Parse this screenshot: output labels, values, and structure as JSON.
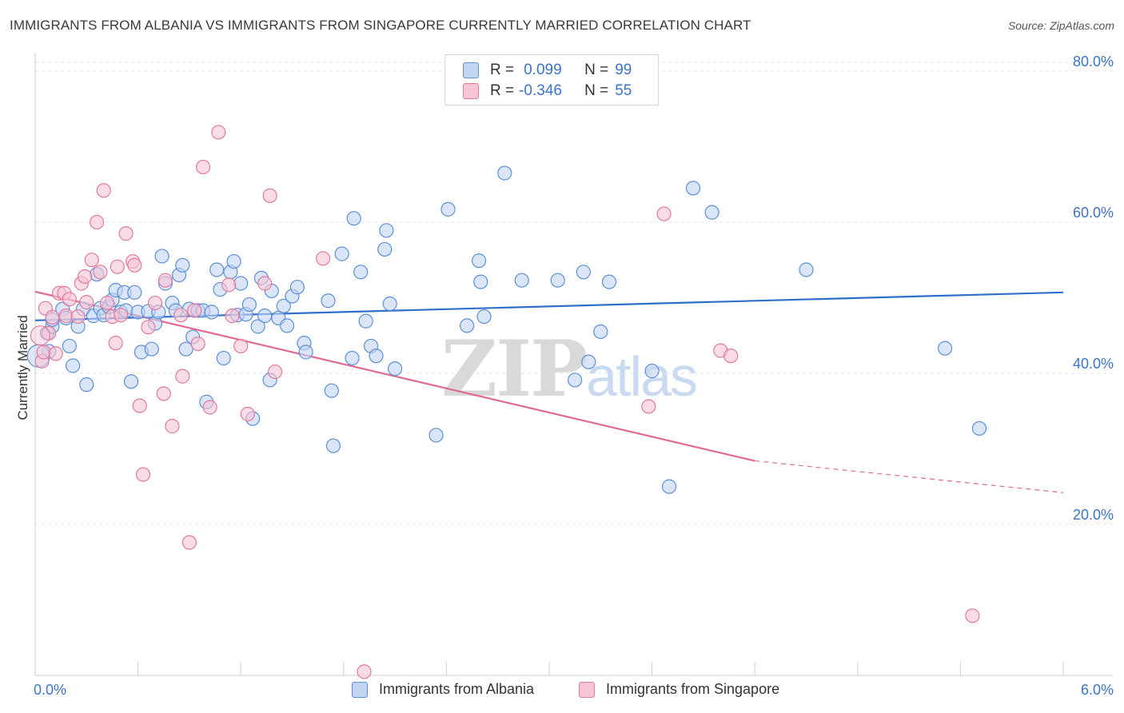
{
  "title": "IMMIGRANTS FROM ALBANIA VS IMMIGRANTS FROM SINGAPORE CURRENTLY MARRIED CORRELATION CHART",
  "source": "Source: ZipAtlas.com",
  "watermark": {
    "zip": "ZIP",
    "atlas": "atlas"
  },
  "legend": {
    "r_label": "R =",
    "n_label": "N =",
    "rows": [
      {
        "r": "0.099",
        "n": "99"
      },
      {
        "r": "-0.346",
        "n": "55"
      }
    ]
  },
  "chart_data": {
    "type": "scatter",
    "title": "IMMIGRANTS FROM ALBANIA VS IMMIGRANTS FROM SINGAPORE CURRENTLY MARRIED CORRELATION CHART",
    "xlabel": "",
    "ylabel": "Currently Married",
    "xlim": [
      0,
      6
    ],
    "ylim": [
      0,
      82
    ],
    "x_tick_labels": [
      "0.0%",
      "6.0%"
    ],
    "y_ticks": [
      20,
      40,
      60,
      80
    ],
    "y_tick_labels": [
      "20.0%",
      "40.0%",
      "60.0%",
      "80.0%"
    ],
    "grid": true,
    "colors": {
      "albania_fill": "#c2d6f2",
      "albania_stroke": "#5b8fd6",
      "albania_line": "#2f6fcc",
      "singapore_fill": "#f7c5d6",
      "singapore_stroke": "#e07a9e",
      "singapore_line": "#e06a96"
    },
    "series": [
      {
        "name": "Immigrants from Albania",
        "r": 0.099,
        "n": 99,
        "trend": {
          "x": [
            0,
            6
          ],
          "y": [
            47,
            50.7
          ]
        },
        "points": [
          [
            0.07,
            45.3
          ],
          [
            0.08,
            42.9
          ],
          [
            0.1,
            46.2
          ],
          [
            0.1,
            47.1
          ],
          [
            0.16,
            48.5
          ],
          [
            0.18,
            47.3
          ],
          [
            0.2,
            43.6
          ],
          [
            0.22,
            41
          ],
          [
            0.25,
            46.2
          ],
          [
            0.28,
            48.5
          ],
          [
            0.3,
            38.5
          ],
          [
            0.34,
            47.6
          ],
          [
            0.36,
            53.1
          ],
          [
            0.38,
            48.6
          ],
          [
            0.4,
            47.7
          ],
          [
            0.43,
            48.8
          ],
          [
            0.45,
            49.7
          ],
          [
            0.47,
            51
          ],
          [
            0.5,
            48.1
          ],
          [
            0.52,
            50.7
          ],
          [
            0.53,
            48.3
          ],
          [
            0.56,
            38.9
          ],
          [
            0.58,
            50.7
          ],
          [
            0.6,
            48.1
          ],
          [
            0.62,
            42.8
          ],
          [
            0.66,
            48.2
          ],
          [
            0.68,
            43.2
          ],
          [
            0.7,
            46.6
          ],
          [
            0.72,
            48.1
          ],
          [
            0.74,
            55.5
          ],
          [
            0.76,
            51.9
          ],
          [
            0.8,
            49.3
          ],
          [
            0.82,
            48.3
          ],
          [
            0.84,
            53
          ],
          [
            0.86,
            54.3
          ],
          [
            0.88,
            43.2
          ],
          [
            0.9,
            48.5
          ],
          [
            0.92,
            44.8
          ],
          [
            0.95,
            48.3
          ],
          [
            0.98,
            48.3
          ],
          [
            1.0,
            36.2
          ],
          [
            1.03,
            48.1
          ],
          [
            1.06,
            53.7
          ],
          [
            1.08,
            51.1
          ],
          [
            1.1,
            42
          ],
          [
            1.14,
            53.4
          ],
          [
            1.16,
            54.8
          ],
          [
            1.18,
            47.7
          ],
          [
            1.2,
            51.9
          ],
          [
            1.23,
            47.8
          ],
          [
            1.25,
            49.1
          ],
          [
            1.27,
            34
          ],
          [
            1.3,
            46.2
          ],
          [
            1.32,
            52.6
          ],
          [
            1.34,
            47.6
          ],
          [
            1.37,
            39.1
          ],
          [
            1.38,
            50.9
          ],
          [
            1.42,
            47.3
          ],
          [
            1.45,
            48.9
          ],
          [
            1.47,
            46.3
          ],
          [
            1.5,
            50.2
          ],
          [
            1.53,
            51.4
          ],
          [
            1.57,
            44
          ],
          [
            1.58,
            42.8
          ],
          [
            1.71,
            49.6
          ],
          [
            1.73,
            37.7
          ],
          [
            1.74,
            30.4
          ],
          [
            1.79,
            55.8
          ],
          [
            1.85,
            42
          ],
          [
            1.86,
            60.5
          ],
          [
            1.9,
            53.4
          ],
          [
            1.93,
            46.9
          ],
          [
            1.96,
            43.6
          ],
          [
            1.99,
            42.3
          ],
          [
            2.04,
            56.4
          ],
          [
            2.05,
            58.9
          ],
          [
            2.07,
            49.2
          ],
          [
            2.34,
            31.8
          ],
          [
            2.41,
            61.7
          ],
          [
            2.52,
            46.3
          ],
          [
            2.59,
            54.9
          ],
          [
            2.6,
            52.1
          ],
          [
            2.74,
            66.5
          ],
          [
            2.84,
            52.3
          ],
          [
            3.05,
            52.3
          ],
          [
            3.15,
            39.1
          ],
          [
            3.2,
            53.4
          ],
          [
            3.23,
            41.5
          ],
          [
            3.3,
            45.5
          ],
          [
            3.35,
            52.1
          ],
          [
            3.6,
            40.3
          ],
          [
            3.7,
            25
          ],
          [
            3.84,
            64.5
          ],
          [
            3.95,
            61.3
          ],
          [
            4.5,
            53.7
          ],
          [
            5.31,
            43.3
          ],
          [
            5.51,
            32.7
          ],
          [
            2.1,
            40.6
          ],
          [
            2.62,
            47.5
          ]
        ]
      },
      {
        "name": "Immigrants from Singapore",
        "r": -0.346,
        "n": 55,
        "trend": {
          "x": [
            0,
            4.2
          ],
          "y": [
            50.8,
            28.4
          ]
        },
        "trend_extension": {
          "x": [
            4.2,
            6
          ],
          "y": [
            28.4,
            24.2
          ]
        },
        "points": [
          [
            0.04,
            41.6
          ],
          [
            0.05,
            42.8
          ],
          [
            0.06,
            48.6
          ],
          [
            0.08,
            45.3
          ],
          [
            0.1,
            47.4
          ],
          [
            0.12,
            42.6
          ],
          [
            0.14,
            50.6
          ],
          [
            0.17,
            50.6
          ],
          [
            0.18,
            47.6
          ],
          [
            0.2,
            49.8
          ],
          [
            0.25,
            47.5
          ],
          [
            0.27,
            51.9
          ],
          [
            0.29,
            52.8
          ],
          [
            0.3,
            49.4
          ],
          [
            0.33,
            55
          ],
          [
            0.36,
            60
          ],
          [
            0.38,
            53.4
          ],
          [
            0.4,
            64.2
          ],
          [
            0.42,
            49.3
          ],
          [
            0.45,
            47.5
          ],
          [
            0.47,
            44
          ],
          [
            0.48,
            54.1
          ],
          [
            0.5,
            47.7
          ],
          [
            0.53,
            58.5
          ],
          [
            0.57,
            54.8
          ],
          [
            0.58,
            54.3
          ],
          [
            0.61,
            35.7
          ],
          [
            0.63,
            26.6
          ],
          [
            0.66,
            46.1
          ],
          [
            0.7,
            49.3
          ],
          [
            0.75,
            37.3
          ],
          [
            0.76,
            52.3
          ],
          [
            0.8,
            33
          ],
          [
            0.85,
            47.7
          ],
          [
            0.86,
            39.6
          ],
          [
            0.9,
            17.6
          ],
          [
            0.93,
            48.3
          ],
          [
            0.95,
            43.9
          ],
          [
            0.98,
            67.3
          ],
          [
            1.02,
            35.5
          ],
          [
            1.07,
            71.9
          ],
          [
            1.13,
            51.7
          ],
          [
            1.15,
            47.6
          ],
          [
            1.2,
            43.6
          ],
          [
            1.24,
            34.6
          ],
          [
            1.34,
            51.9
          ],
          [
            1.37,
            63.5
          ],
          [
            1.4,
            40.2
          ],
          [
            1.68,
            55.2
          ],
          [
            1.92,
            0.5
          ],
          [
            3.58,
            35.6
          ],
          [
            3.67,
            61.1
          ],
          [
            4.0,
            43
          ],
          [
            4.06,
            42.3
          ],
          [
            5.47,
            7.9
          ]
        ]
      }
    ]
  },
  "bottom_legend": [
    "Immigrants from Albania",
    "Immigrants from Singapore"
  ]
}
